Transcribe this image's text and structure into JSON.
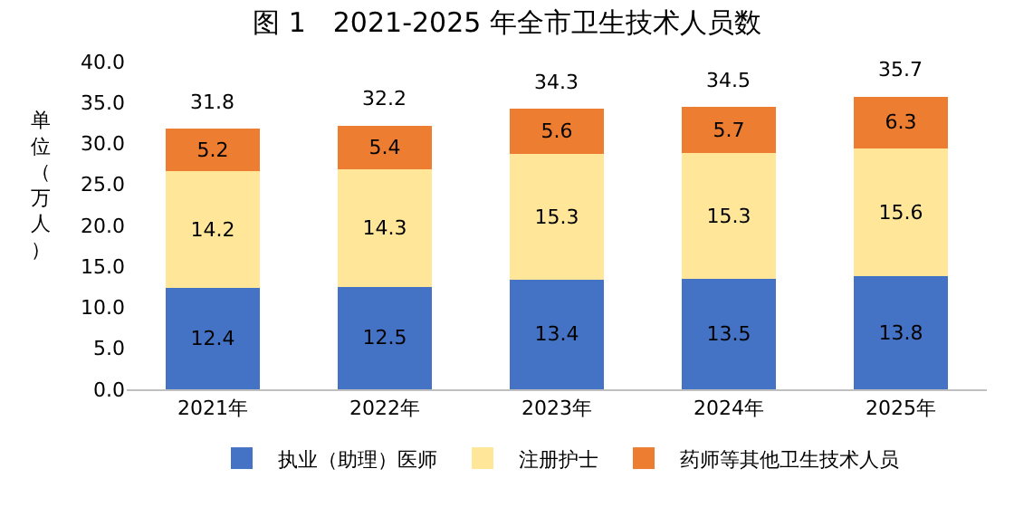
{
  "chart_data": {
    "type": "bar",
    "title": "图 1　2021-2025 年全市卫生技术人员数",
    "ylabel": "单位（万人）",
    "categories": [
      "2021年",
      "2022年",
      "2023年",
      "2024年",
      "2025年"
    ],
    "stacked": true,
    "series": [
      {
        "name": "执业（助理）医师",
        "color": "#4472c4",
        "values": [
          12.4,
          12.5,
          13.4,
          13.5,
          13.8
        ]
      },
      {
        "name": "注册护士",
        "color": "#ffe699",
        "values": [
          14.2,
          14.3,
          15.3,
          15.3,
          15.6
        ]
      },
      {
        "name": "药师等其他卫生技术人员",
        "color": "#ed7d31",
        "values": [
          5.2,
          5.4,
          5.6,
          5.7,
          6.3
        ]
      }
    ],
    "totals": [
      "31.8",
      "32.2",
      "34.3",
      "34.5",
      "35.7"
    ],
    "ylim": [
      0,
      40
    ],
    "yticks": [
      {
        "value": 0,
        "label": "0.0"
      },
      {
        "value": 5,
        "label": "5.0"
      },
      {
        "value": 10,
        "label": "10.0"
      },
      {
        "value": 15,
        "label": "15.0"
      },
      {
        "value": 20,
        "label": "20.0"
      },
      {
        "value": 25,
        "label": "25.0"
      },
      {
        "value": 30,
        "label": "30.0"
      },
      {
        "value": 35,
        "label": "35.0"
      },
      {
        "value": 40,
        "label": "40.0"
      }
    ],
    "data_labels": true,
    "legend": "bottom"
  }
}
